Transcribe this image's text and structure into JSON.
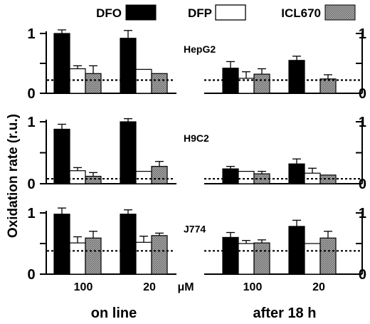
{
  "chart_data": {
    "type": "bar",
    "ylabel": "Oxidation rate (r.u.)",
    "legend": {
      "placement": "top",
      "entries": [
        {
          "name": "DFO",
          "color": "#000000",
          "fill": "solid"
        },
        {
          "name": "DFP",
          "color": "#ffffff",
          "fill": "open"
        },
        {
          "name": "ICL670",
          "color": "#999999",
          "fill": "hatched"
        }
      ]
    },
    "groups": [
      {
        "label": "on line",
        "x_unit": "μM",
        "categories": [
          "100",
          "20"
        ]
      },
      {
        "label": "after 18 h",
        "categories": [
          "100",
          "20"
        ]
      }
    ],
    "ylim": [
      0,
      1.1
    ],
    "yticks": [
      "0",
      "1"
    ],
    "panels": [
      {
        "cell": "HepG2",
        "baseline": 0.22,
        "on_line": {
          "DFO": {
            "values": [
              1.0,
              0.92
            ],
            "errors": [
              0.06,
              0.13
            ]
          },
          "DFP": {
            "values": [
              0.41,
              0.4
            ],
            "errors": [
              0.05,
              0.0
            ]
          },
          "ICL670": {
            "values": [
              0.33,
              0.33
            ],
            "errors": [
              0.13,
              0.0
            ]
          }
        },
        "after_18h": {
          "DFO": {
            "values": [
              0.42,
              0.55
            ],
            "errors": [
              0.11,
              0.07
            ]
          },
          "DFP": {
            "values": [
              0.25,
              0.0
            ],
            "errors": [
              0.11,
              0.0
            ]
          },
          "ICL670": {
            "values": [
              0.32,
              0.24
            ],
            "errors": [
              0.09,
              0.07
            ]
          }
        }
      },
      {
        "cell": "H9C2",
        "baseline": 0.08,
        "on_line": {
          "DFO": {
            "values": [
              0.88,
              1.0
            ],
            "errors": [
              0.08,
              0.05
            ]
          },
          "DFP": {
            "values": [
              0.21,
              0.2
            ],
            "errors": [
              0.05,
              0.0
            ]
          },
          "ICL670": {
            "values": [
              0.12,
              0.28
            ],
            "errors": [
              0.06,
              0.08
            ]
          }
        },
        "after_18h": {
          "DFO": {
            "values": [
              0.24,
              0.32
            ],
            "errors": [
              0.04,
              0.08
            ]
          },
          "DFP": {
            "values": [
              0.2,
              0.17
            ],
            "errors": [
              0.0,
              0.08
            ]
          },
          "ICL670": {
            "values": [
              0.16,
              0.14
            ],
            "errors": [
              0.04,
              0.0
            ]
          }
        }
      },
      {
        "cell": "J774",
        "baseline": 0.38,
        "on_line": {
          "DFO": {
            "values": [
              0.98,
              0.98
            ],
            "errors": [
              0.1,
              0.07
            ]
          },
          "DFP": {
            "values": [
              0.51,
              0.52
            ],
            "errors": [
              0.1,
              0.1
            ]
          },
          "ICL670": {
            "values": [
              0.59,
              0.63
            ],
            "errors": [
              0.11,
              0.04
            ]
          }
        },
        "after_18h": {
          "DFO": {
            "values": [
              0.6,
              0.78
            ],
            "errors": [
              0.08,
              0.1
            ]
          },
          "DFP": {
            "values": [
              0.5,
              0.5
            ],
            "errors": [
              0.05,
              0.0
            ]
          },
          "ICL670": {
            "values": [
              0.51,
              0.59
            ],
            "errors": [
              0.05,
              0.11
            ]
          }
        }
      }
    ]
  }
}
